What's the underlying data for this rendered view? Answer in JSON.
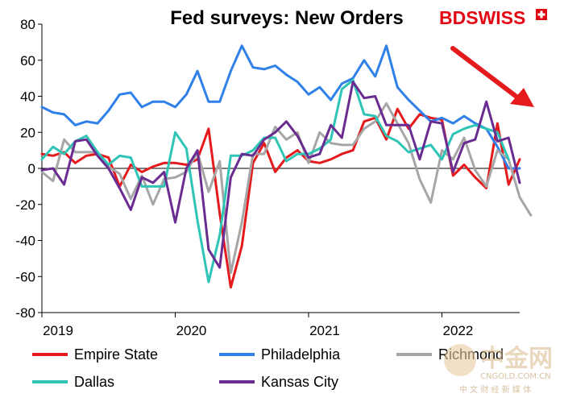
{
  "brand": {
    "part1": "BD",
    "part2": "SWISS",
    "color1": "#e30613",
    "color2": "#e30613"
  },
  "watermark": {
    "main": "中金网",
    "url": "CNGOLD.COM.CN",
    "sub": "中 文 财 经 新 媒 体"
  },
  "chart_data": {
    "type": "line",
    "title": "Fed surveys: New Orders",
    "xlabel": "",
    "ylabel": "",
    "ylim": [
      -80,
      80
    ],
    "yticks": [
      -80,
      -60,
      -40,
      -20,
      0,
      20,
      40,
      60,
      80
    ],
    "xticks": [
      {
        "label": "2019",
        "x": 0
      },
      {
        "label": "2020",
        "x": 12
      },
      {
        "label": "2021",
        "x": 24
      },
      {
        "label": "2022",
        "x": 36
      }
    ],
    "x_axis_note": "monthly index, 0 = Jan 2019",
    "trend_arrow": {
      "color": "#e41a1c",
      "direction": "down"
    },
    "series": [
      {
        "name": "Empire State",
        "color": "#e41a1c",
        "values": [
          8,
          7,
          9,
          3,
          7,
          8,
          6,
          -10,
          2,
          -2,
          1,
          3,
          3,
          2,
          5,
          22,
          -25,
          -66,
          -43,
          3,
          14,
          -2,
          6,
          10,
          4,
          3,
          5,
          8,
          10,
          26,
          28,
          16,
          33,
          22,
          30,
          28,
          27,
          -4,
          2,
          -5,
          -11,
          25,
          -9,
          5
        ]
      },
      {
        "name": "Philadelphia",
        "color": "#2f80e8",
        "values": [
          34,
          31,
          30,
          24,
          26,
          25,
          32,
          41,
          42,
          34,
          37,
          37,
          34,
          41,
          54,
          37,
          37,
          54,
          68,
          56,
          55,
          57,
          52,
          48,
          41,
          45,
          38,
          47,
          50,
          60,
          51,
          68,
          45,
          38,
          32,
          26,
          28,
          25,
          29,
          25,
          22,
          12,
          0,
          0
        ]
      },
      {
        "name": "Richmond",
        "color": "#a6a6a6",
        "values": [
          -2,
          -7,
          16,
          9,
          9,
          9,
          1,
          -3,
          -17,
          -4,
          -20,
          -6,
          -5,
          -2,
          9,
          -13,
          4,
          -58,
          -30,
          8,
          8,
          23,
          16,
          20,
          3,
          20,
          14,
          13,
          13,
          22,
          26,
          36,
          25,
          14,
          -6,
          -19,
          10,
          5,
          17,
          -1,
          -10,
          10,
          5,
          -16,
          -26
        ]
      },
      {
        "name": "Dallas",
        "color": "#2ec4b6",
        "values": [
          5,
          12,
          8,
          15,
          18,
          9,
          2,
          7,
          6,
          -10,
          -10,
          -10,
          20,
          11,
          -29,
          -63,
          -37,
          7,
          7,
          10,
          17,
          17,
          4,
          8,
          8,
          11,
          16,
          44,
          49,
          30,
          29,
          18,
          15,
          9,
          11,
          13,
          5,
          19,
          22,
          24,
          22,
          20,
          5
        ]
      },
      {
        "name": "Kansas City",
        "color": "#6a2c91",
        "values": [
          -1,
          0,
          -9,
          15,
          16,
          7,
          0,
          -11,
          -23,
          -5,
          -8,
          -2,
          -30,
          0,
          10,
          -45,
          -55,
          -5,
          8,
          7,
          16,
          20,
          26,
          18,
          6,
          8,
          24,
          17,
          48,
          39,
          40,
          24,
          24,
          24,
          5,
          26,
          25,
          -2,
          14,
          16,
          37,
          15,
          17,
          -8
        ]
      }
    ]
  }
}
